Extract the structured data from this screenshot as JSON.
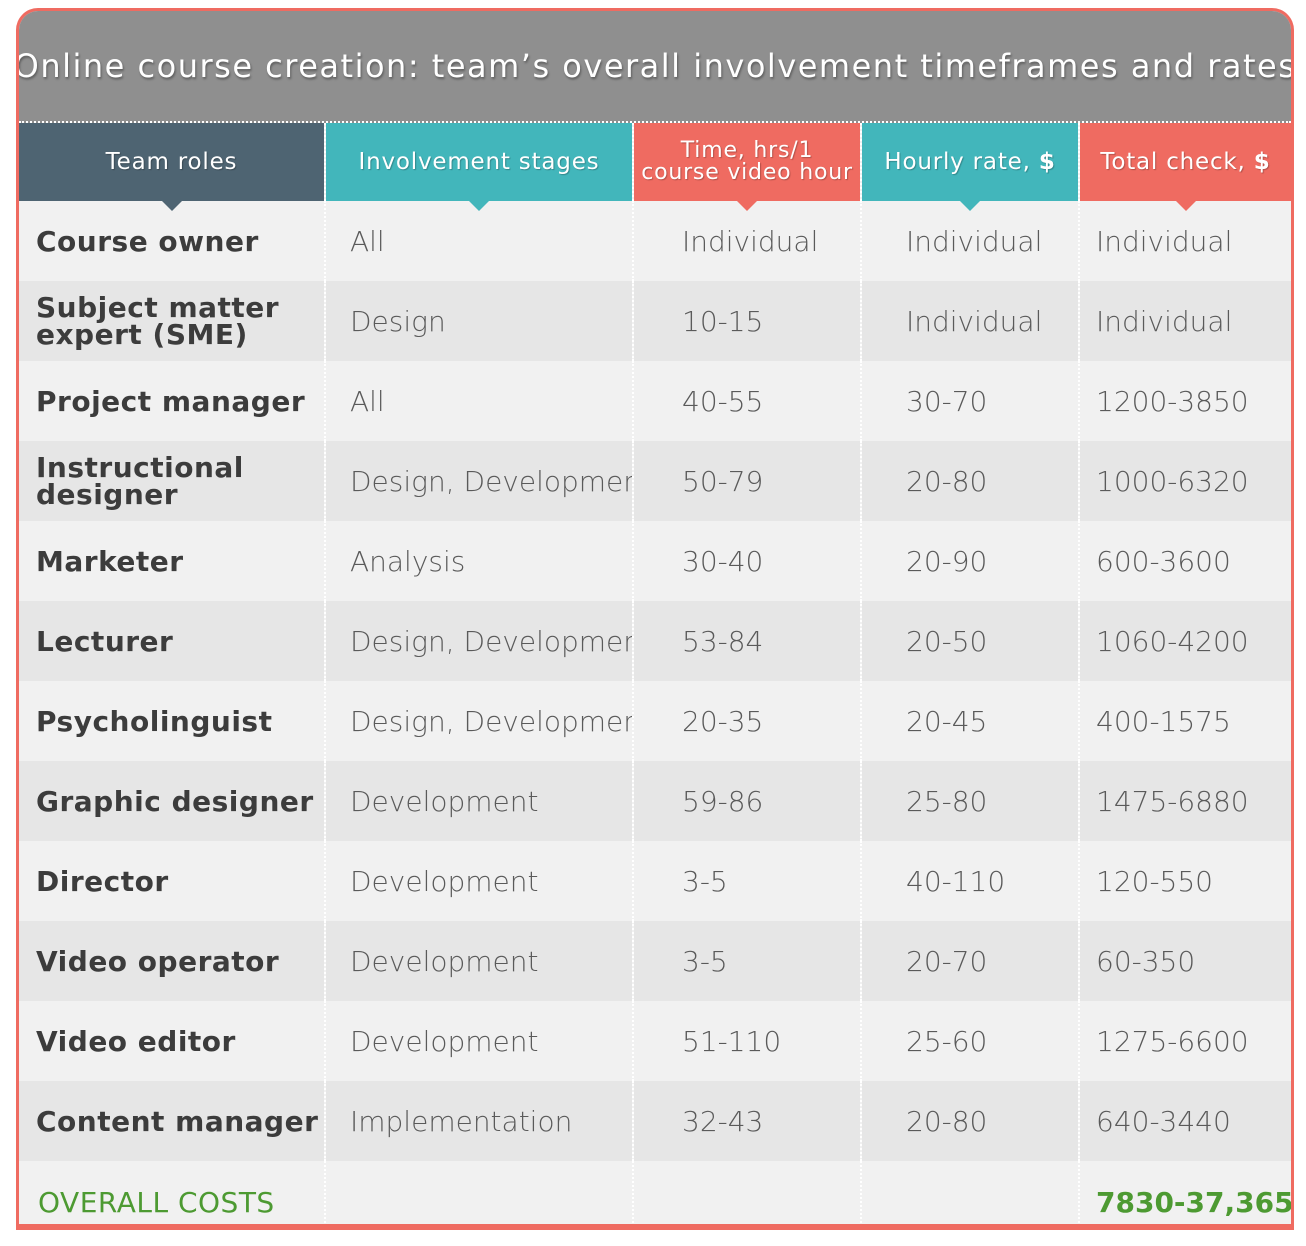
{
  "title": "Online course creation: team’s overall involvement timeframes and rates",
  "colors": {
    "title_bg": "#8f8f8f",
    "col_roles": "#4e6472",
    "col_stages": "#42b6bb",
    "col_time": "#ef6b61",
    "col_rate": "#42b6bb",
    "col_total": "#ef6b61",
    "accent_green": "#4d9a32",
    "frame": "#ef6b61"
  },
  "headers": {
    "roles": "Team roles",
    "stages": "Involvement stages",
    "time": "Time, hrs/1 course video hour",
    "rate": "Hourly rate,",
    "rate_unit": "$",
    "total": "Total check,",
    "total_unit": "$"
  },
  "chart_data": {
    "type": "table",
    "title": "Online course creation: team’s overall involvement timeframes and rates",
    "columns": [
      "Team roles",
      "Involvement stages",
      "Time, hrs/1 course video hour",
      "Hourly rate, $",
      "Total check, $"
    ],
    "rows": [
      {
        "role": "Course owner",
        "stages": "All",
        "time": "Individual",
        "rate": "Individual",
        "total": "Individual"
      },
      {
        "role": "Subject matter expert (SME)",
        "stages": "Design",
        "time": "10-15",
        "rate": "Individual",
        "total": "Individual"
      },
      {
        "role": "Project manager",
        "stages": "All",
        "time": "40-55",
        "rate": "30-70",
        "total": "1200-3850"
      },
      {
        "role": "Instructional designer",
        "stages": "Design, Development",
        "time": "50-79",
        "rate": "20-80",
        "total": "1000-6320"
      },
      {
        "role": "Marketer",
        "stages": "Analysis",
        "time": "30-40",
        "rate": "20-90",
        "total": "600-3600"
      },
      {
        "role": "Lecturer",
        "stages": "Design, Development",
        "time": "53-84",
        "rate": "20-50",
        "total": "1060-4200"
      },
      {
        "role": "Psycholinguist",
        "stages": "Design, Development",
        "time": "20-35",
        "rate": "20-45",
        "total": "400-1575"
      },
      {
        "role": "Graphic designer",
        "stages": "Development",
        "time": "59-86",
        "rate": "25-80",
        "total": "1475-6880"
      },
      {
        "role": "Director",
        "stages": "Development",
        "time": "3-5",
        "rate": "40-110",
        "total": "120-550"
      },
      {
        "role": "Video operator",
        "stages": "Development",
        "time": "3-5",
        "rate": "20-70",
        "total": "60-350"
      },
      {
        "role": "Video editor",
        "stages": "Development",
        "time": "51-110",
        "rate": "25-60",
        "total": "1275-6600"
      },
      {
        "role": "Content manager",
        "stages": "Implementation",
        "time": "32-43",
        "rate": "20-80",
        "total": "640-3440"
      }
    ],
    "overall": {
      "label": "OVERALL COSTS",
      "value": "7830-37,365"
    }
  }
}
